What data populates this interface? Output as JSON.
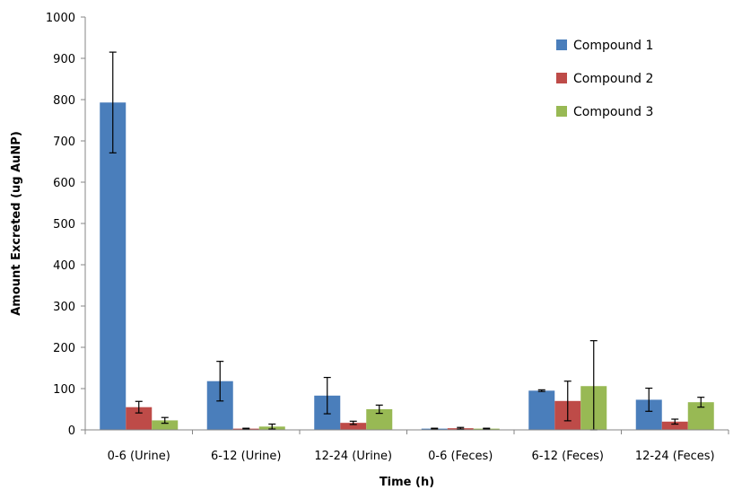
{
  "chart_data": {
    "type": "bar",
    "title": "",
    "xlabel": "Time (h)",
    "ylabel": "Amount Excreted (ug AuNP)",
    "ylim": [
      0,
      1000
    ],
    "yticks": [
      0,
      100,
      200,
      300,
      400,
      500,
      600,
      700,
      800,
      900,
      1000
    ],
    "grid": false,
    "legend_position": "top-right",
    "categories": [
      "0-6 (Urine)",
      "6-12 (Urine)",
      "12-24 (Urine)",
      "0-6 (Feces)",
      "6-12 (Feces)",
      "12-24 (Feces)"
    ],
    "series": [
      {
        "name": "Compound 1",
        "color": "#4a7ebb",
        "values": [
          793,
          118,
          83,
          3,
          95,
          73
        ],
        "errors": [
          122,
          48,
          44,
          1,
          2,
          28
        ]
      },
      {
        "name": "Compound 2",
        "color": "#be4b48",
        "values": [
          55,
          3,
          17,
          4,
          70,
          20
        ],
        "errors": [
          14,
          1,
          4,
          2,
          48,
          6
        ]
      },
      {
        "name": "Compound 3",
        "color": "#98b954",
        "values": [
          23,
          8,
          50,
          3,
          106,
          67
        ],
        "errors": [
          7,
          6,
          10,
          1,
          110,
          12
        ]
      }
    ]
  }
}
